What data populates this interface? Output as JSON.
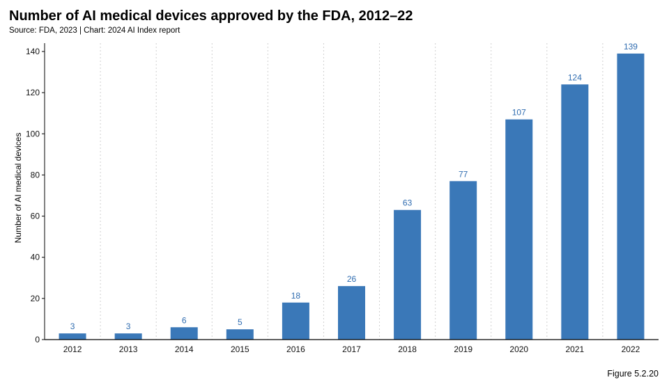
{
  "chart_data": {
    "type": "bar",
    "title": "Number of AI medical devices approved by the FDA, 2012–22",
    "subtitle": "Source: FDA, 2023 | Chart: 2024 AI Index report",
    "xlabel": "",
    "ylabel": "Number of AI medical devices",
    "categories": [
      "2012",
      "2013",
      "2014",
      "2015",
      "2016",
      "2017",
      "2018",
      "2019",
      "2020",
      "2021",
      "2022"
    ],
    "values": [
      3,
      3,
      6,
      5,
      18,
      26,
      63,
      77,
      107,
      124,
      139
    ],
    "ylim": [
      0,
      140
    ],
    "yticks": [
      0,
      20,
      40,
      60,
      80,
      100,
      120,
      140
    ],
    "grid": "vertical dashed",
    "bar_color": "#3a78b8",
    "label_color": "#2f6cb0"
  },
  "footer": {
    "figure_label": "Figure 5.2.20"
  }
}
